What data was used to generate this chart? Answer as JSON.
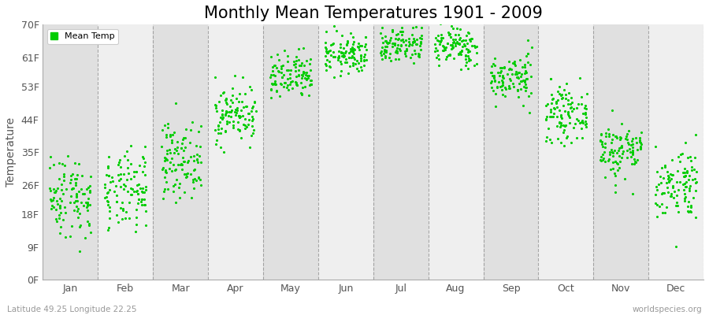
{
  "title": "Monthly Mean Temperatures 1901 - 2009",
  "ylabel": "Temperature",
  "xlabel_months": [
    "Jan",
    "Feb",
    "Mar",
    "Apr",
    "May",
    "Jun",
    "Jul",
    "Aug",
    "Sep",
    "Oct",
    "Nov",
    "Dec"
  ],
  "ytick_labels": [
    "0F",
    "9F",
    "18F",
    "26F",
    "35F",
    "44F",
    "53F",
    "61F",
    "70F"
  ],
  "ytick_values": [
    0,
    9,
    18,
    26,
    35,
    44,
    53,
    61,
    70
  ],
  "ylim": [
    0,
    70
  ],
  "dot_color": "#00cc00",
  "background_color": "#ffffff",
  "band_colors": [
    "#e0e0e0",
    "#efefef"
  ],
  "grid_color": "#777777",
  "title_fontsize": 15,
  "label_fontsize": 10,
  "tick_fontsize": 9,
  "legend_label": "Mean Temp",
  "footnote_left": "Latitude 49.25 Longitude 22.25",
  "footnote_right": "worldspecies.org",
  "n_years": 109,
  "monthly_means_celsius": [
    -5.0,
    -4.5,
    0.5,
    7.5,
    13.0,
    16.5,
    18.2,
    17.8,
    13.0,
    7.5,
    2.0,
    -3.0
  ],
  "monthly_stds_celsius": [
    3.2,
    3.0,
    2.8,
    2.2,
    1.8,
    1.5,
    1.5,
    1.5,
    1.8,
    2.0,
    2.2,
    2.8
  ]
}
